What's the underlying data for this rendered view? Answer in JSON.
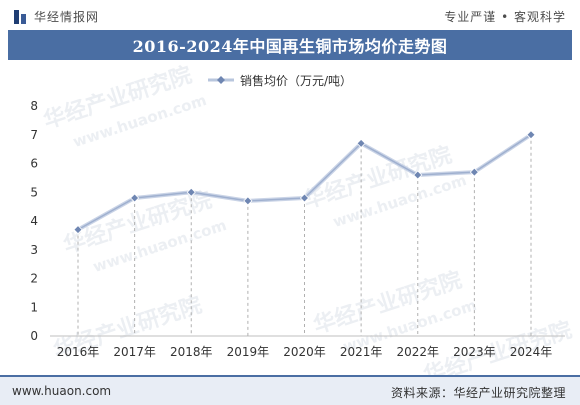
{
  "header": {
    "brand_name": "华经情报网",
    "slogan": "专业严谨 • 客观科学",
    "brand_icon": "bar-logo-icon"
  },
  "watermark": {
    "text": "华经产业研究院",
    "url_text": "www.huaon.com"
  },
  "footer": {
    "site": "www.huaon.com",
    "source": "资料来源：华经产业研究院整理"
  },
  "colors": {
    "title_bar": "#4a6ea3",
    "series_line": "#b8c6dd",
    "series_marker": "#6f86b2"
  },
  "chart_data": {
    "type": "line",
    "title": "2016-2024年中国再生铜市场均价走势图",
    "categories": [
      "2016年",
      "2017年",
      "2018年",
      "2019年",
      "2020年",
      "2021年",
      "2022年",
      "2023年",
      "2024年"
    ],
    "series": [
      {
        "name": "销售均价（万元/吨）",
        "values": [
          3.7,
          4.8,
          5.0,
          4.7,
          4.8,
          6.7,
          5.6,
          5.7,
          7.0
        ]
      }
    ],
    "yticks": [
      "0",
      "1",
      "2",
      "3",
      "4",
      "5",
      "6",
      "7",
      "8"
    ],
    "ylim": [
      0,
      8
    ],
    "xlabel": "",
    "ylabel": "",
    "legend_position": "top-center",
    "grid": false,
    "drop_lines": true
  }
}
